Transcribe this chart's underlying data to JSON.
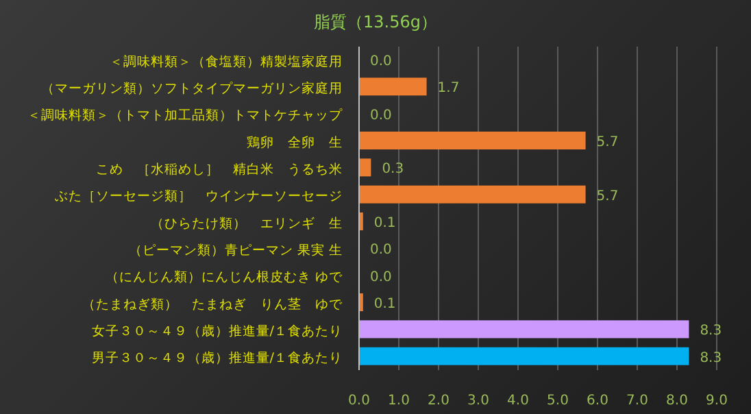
{
  "chart_data": {
    "type": "bar",
    "orientation": "horizontal",
    "title": "脂質（13.56g）",
    "categories": [
      "＜調味料類＞（食塩類）精製塩家庭用",
      "（マーガリン類）ソフトタイプマーガリン家庭用",
      "＜調味料類＞（トマト加工品類）トマトケチャップ",
      "鶏卵　全卵　生",
      "こめ　［水稲めし］　精白米　うるち米",
      "ぶた［ソーセージ類］　ウインナーソーセージ",
      "（ひらたけ類）　エリンギ　生",
      "（ピーマン類）青ピーマン 果実 生",
      "（にんじん類）にんじん根皮むき ゆで",
      "（たまねぎ類）　たまねぎ　りん茎　ゆで",
      "女子３０～４９（歳）推進量/１食あたり",
      "男子３０～４９（歳）推進量/１食あたり"
    ],
    "values": [
      0,
      1.7,
      0,
      5.7,
      0.3,
      5.7,
      0.1,
      0,
      0,
      0.1,
      8.3,
      8.3
    ],
    "value_labels": [
      "0.0",
      "1.7",
      "0.0",
      "5.7",
      "0.3",
      "5.7",
      "0.1",
      "0.0",
      "0.0",
      "0.1",
      "8.3",
      "8.3"
    ],
    "colors": [
      "#ed7d31",
      "#ed7d31",
      "#ed7d31",
      "#ed7d31",
      "#ed7d31",
      "#ed7d31",
      "#ed7d31",
      "#ed7d31",
      "#ed7d31",
      "#ed7d31",
      "#cc99ff",
      "#00b0f0"
    ],
    "xlim": [
      0,
      9
    ],
    "xticks": [
      {
        "value": 0,
        "label": "0.0"
      },
      {
        "value": 1,
        "label": "1.0"
      },
      {
        "value": 2,
        "label": "2.0"
      },
      {
        "value": 3,
        "label": "3.0"
      },
      {
        "value": 4,
        "label": "4.0"
      },
      {
        "value": 5,
        "label": "5.0"
      },
      {
        "value": 6,
        "label": "6.0"
      },
      {
        "value": 7,
        "label": "7.0"
      },
      {
        "value": 8,
        "label": "8.0"
      },
      {
        "value": 9,
        "label": "9.0"
      }
    ],
    "grid": "x"
  }
}
